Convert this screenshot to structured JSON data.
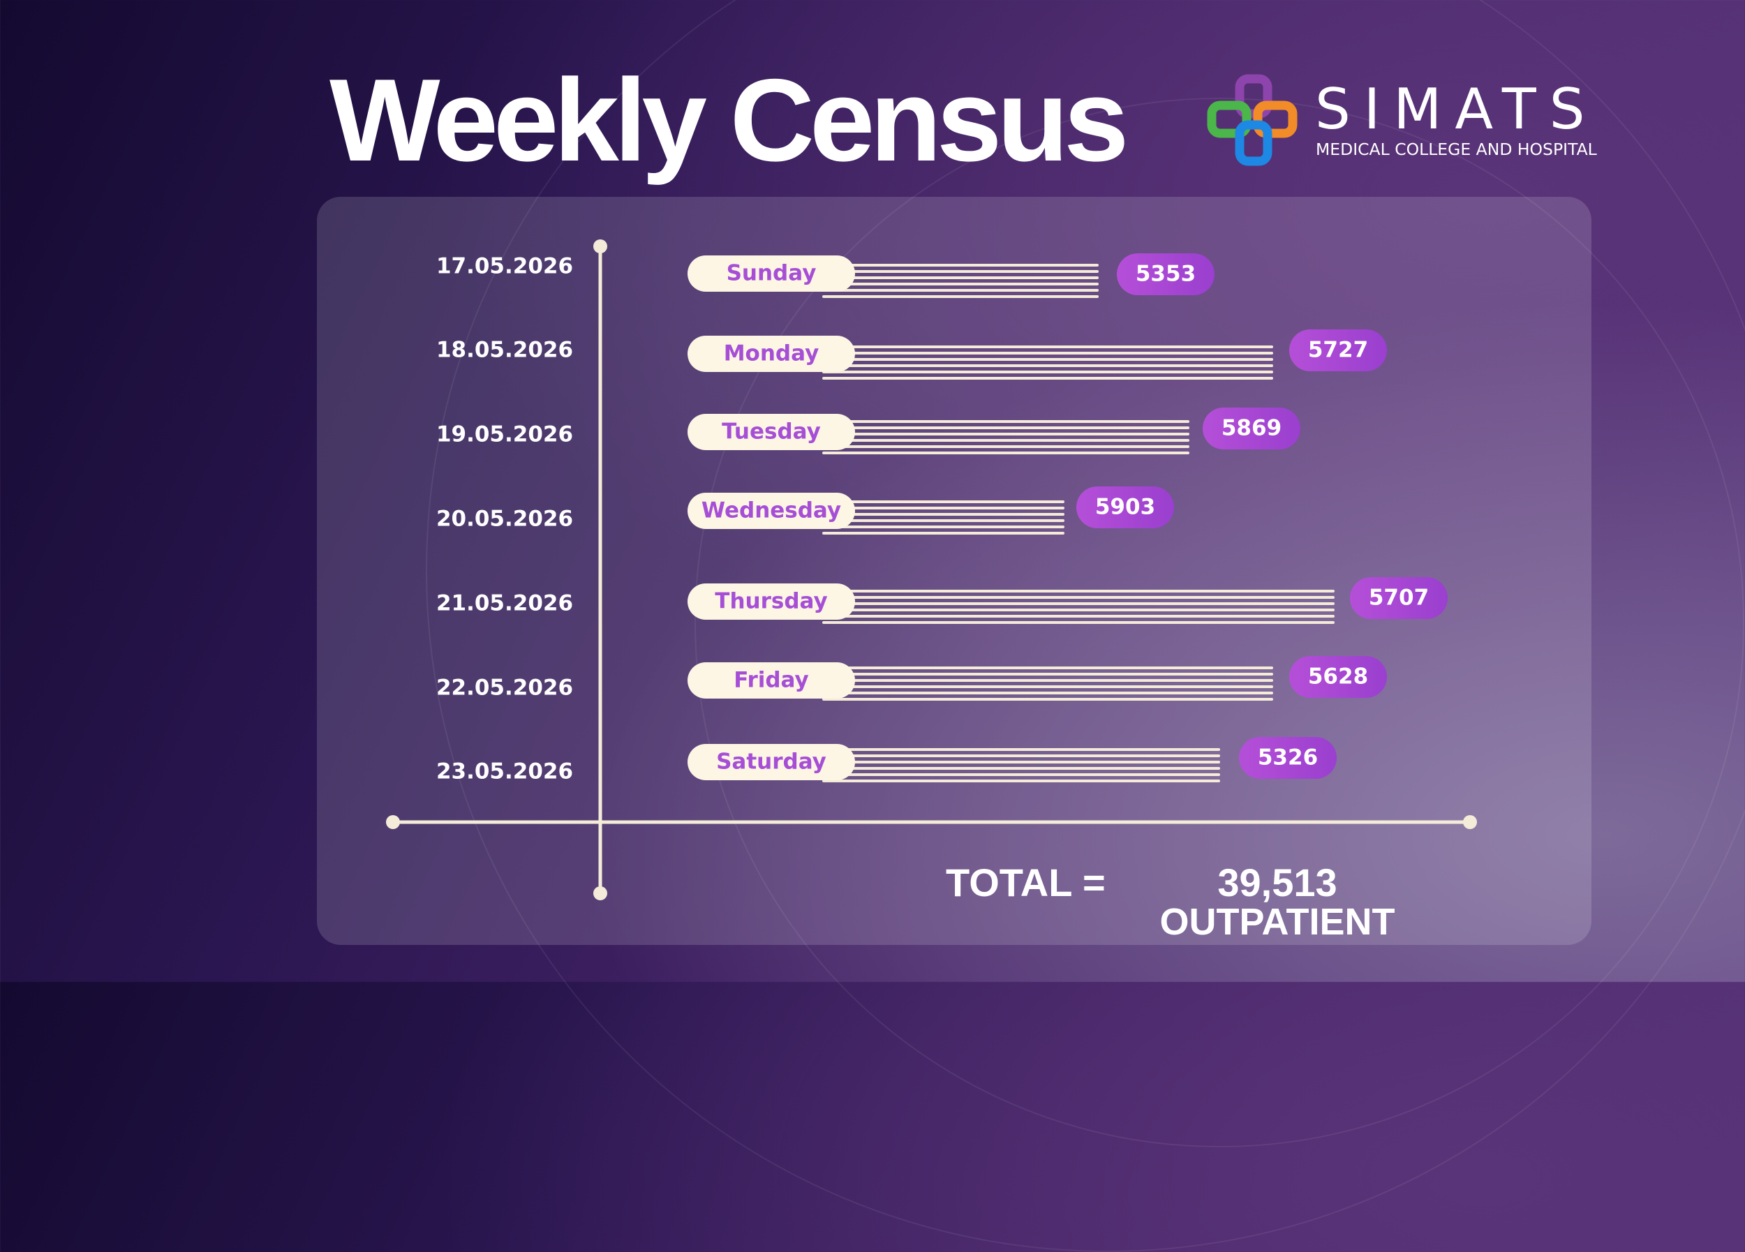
{
  "header": {
    "title": "Weekly Census"
  },
  "logo": {
    "name": "SIMATS",
    "subtitle": "MEDICAL COLLEGE AND HOSPITAL"
  },
  "chart_data": {
    "type": "bar",
    "orientation": "horizontal",
    "dates": [
      "17.05.2026",
      "18.05.2026",
      "19.05.2026",
      "20.05.2026",
      "21.05.2026",
      "22.05.2026",
      "23.05.2026"
    ],
    "categories": [
      "Sunday",
      "Monday",
      "Tuesday",
      "Wednesday",
      "Thursday",
      "Friday",
      "Saturday"
    ],
    "values": [
      5353,
      5727,
      5869,
      5903,
      5707,
      5628,
      5326
    ],
    "title": "Weekly Census",
    "xlabel": "",
    "ylabel": "",
    "grid": false,
    "legend": false
  },
  "total": {
    "label": "TOTAL =",
    "value": "39,513",
    "unit": "OUTPATIENT"
  },
  "colors": {
    "accent": "#a64fd6",
    "pill": "#fdf6e4",
    "line": "#f4ecd9",
    "text": "#ffffff",
    "logo_green": "#4bb649",
    "logo_orange": "#f28c28",
    "logo_blue": "#1e88e5",
    "logo_purple": "#8e44ad"
  }
}
